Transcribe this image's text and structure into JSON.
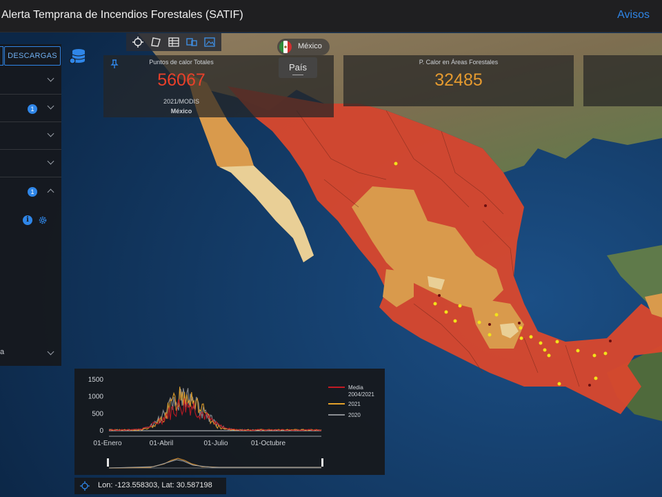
{
  "header": {
    "title": "Alerta Temprana de Incendios Forestales (SATIF)",
    "avisos_label": "Avisos"
  },
  "left_panel": {
    "descargas_label": "DESCARGAS",
    "rows": [
      {
        "badge": "",
        "chevron": "down"
      },
      {
        "badge": "1",
        "chevron": "down"
      },
      {
        "badge": "",
        "chevron": "down"
      },
      {
        "badge": "",
        "chevron": "down"
      },
      {
        "badge": "1",
        "chevron": "up"
      }
    ],
    "tail_text": "a"
  },
  "toolbar": {
    "icons": [
      "crosshair-icon",
      "polygon-icon",
      "table-icon",
      "layers-icon",
      "image-icon"
    ]
  },
  "country_selector": {
    "name": "México",
    "flag_colors": [
      "#2e8b3a",
      "#ffffff",
      "#d32f2f"
    ]
  },
  "stats": {
    "total": {
      "label": "Puntos de calor Totales",
      "value": "56067",
      "sub": "2021/MODIS",
      "country": "México",
      "color": "#e8402a"
    },
    "forest": {
      "label": "P. Calor en Áreas Forestales",
      "value": "32485",
      "color": "#e59a2f"
    }
  },
  "pais_button": "País",
  "chart_data": {
    "type": "line",
    "ylim": [
      0,
      1500
    ],
    "yticks": [
      "1500",
      "1000",
      "500",
      "0"
    ],
    "xticks": [
      "01-Enero",
      "01-Abril",
      "01-Julio",
      "01-Octubre"
    ],
    "series": [
      {
        "name": "Media 2004/2021",
        "color": "#c21a24",
        "peak": 950
      },
      {
        "name": "2021",
        "color": "#e3a12a",
        "peak": 1380
      },
      {
        "name": "2020",
        "color": "#8b8e93",
        "peak": 1250
      }
    ],
    "legend_position": "right"
  },
  "coordinates": {
    "text": "Lon: -123.558303, Lat: 30.587198"
  },
  "colors": {
    "accent": "#2f86e8",
    "high": "#d9482d",
    "medium": "#d99a4c",
    "low": "#e9cf96"
  }
}
